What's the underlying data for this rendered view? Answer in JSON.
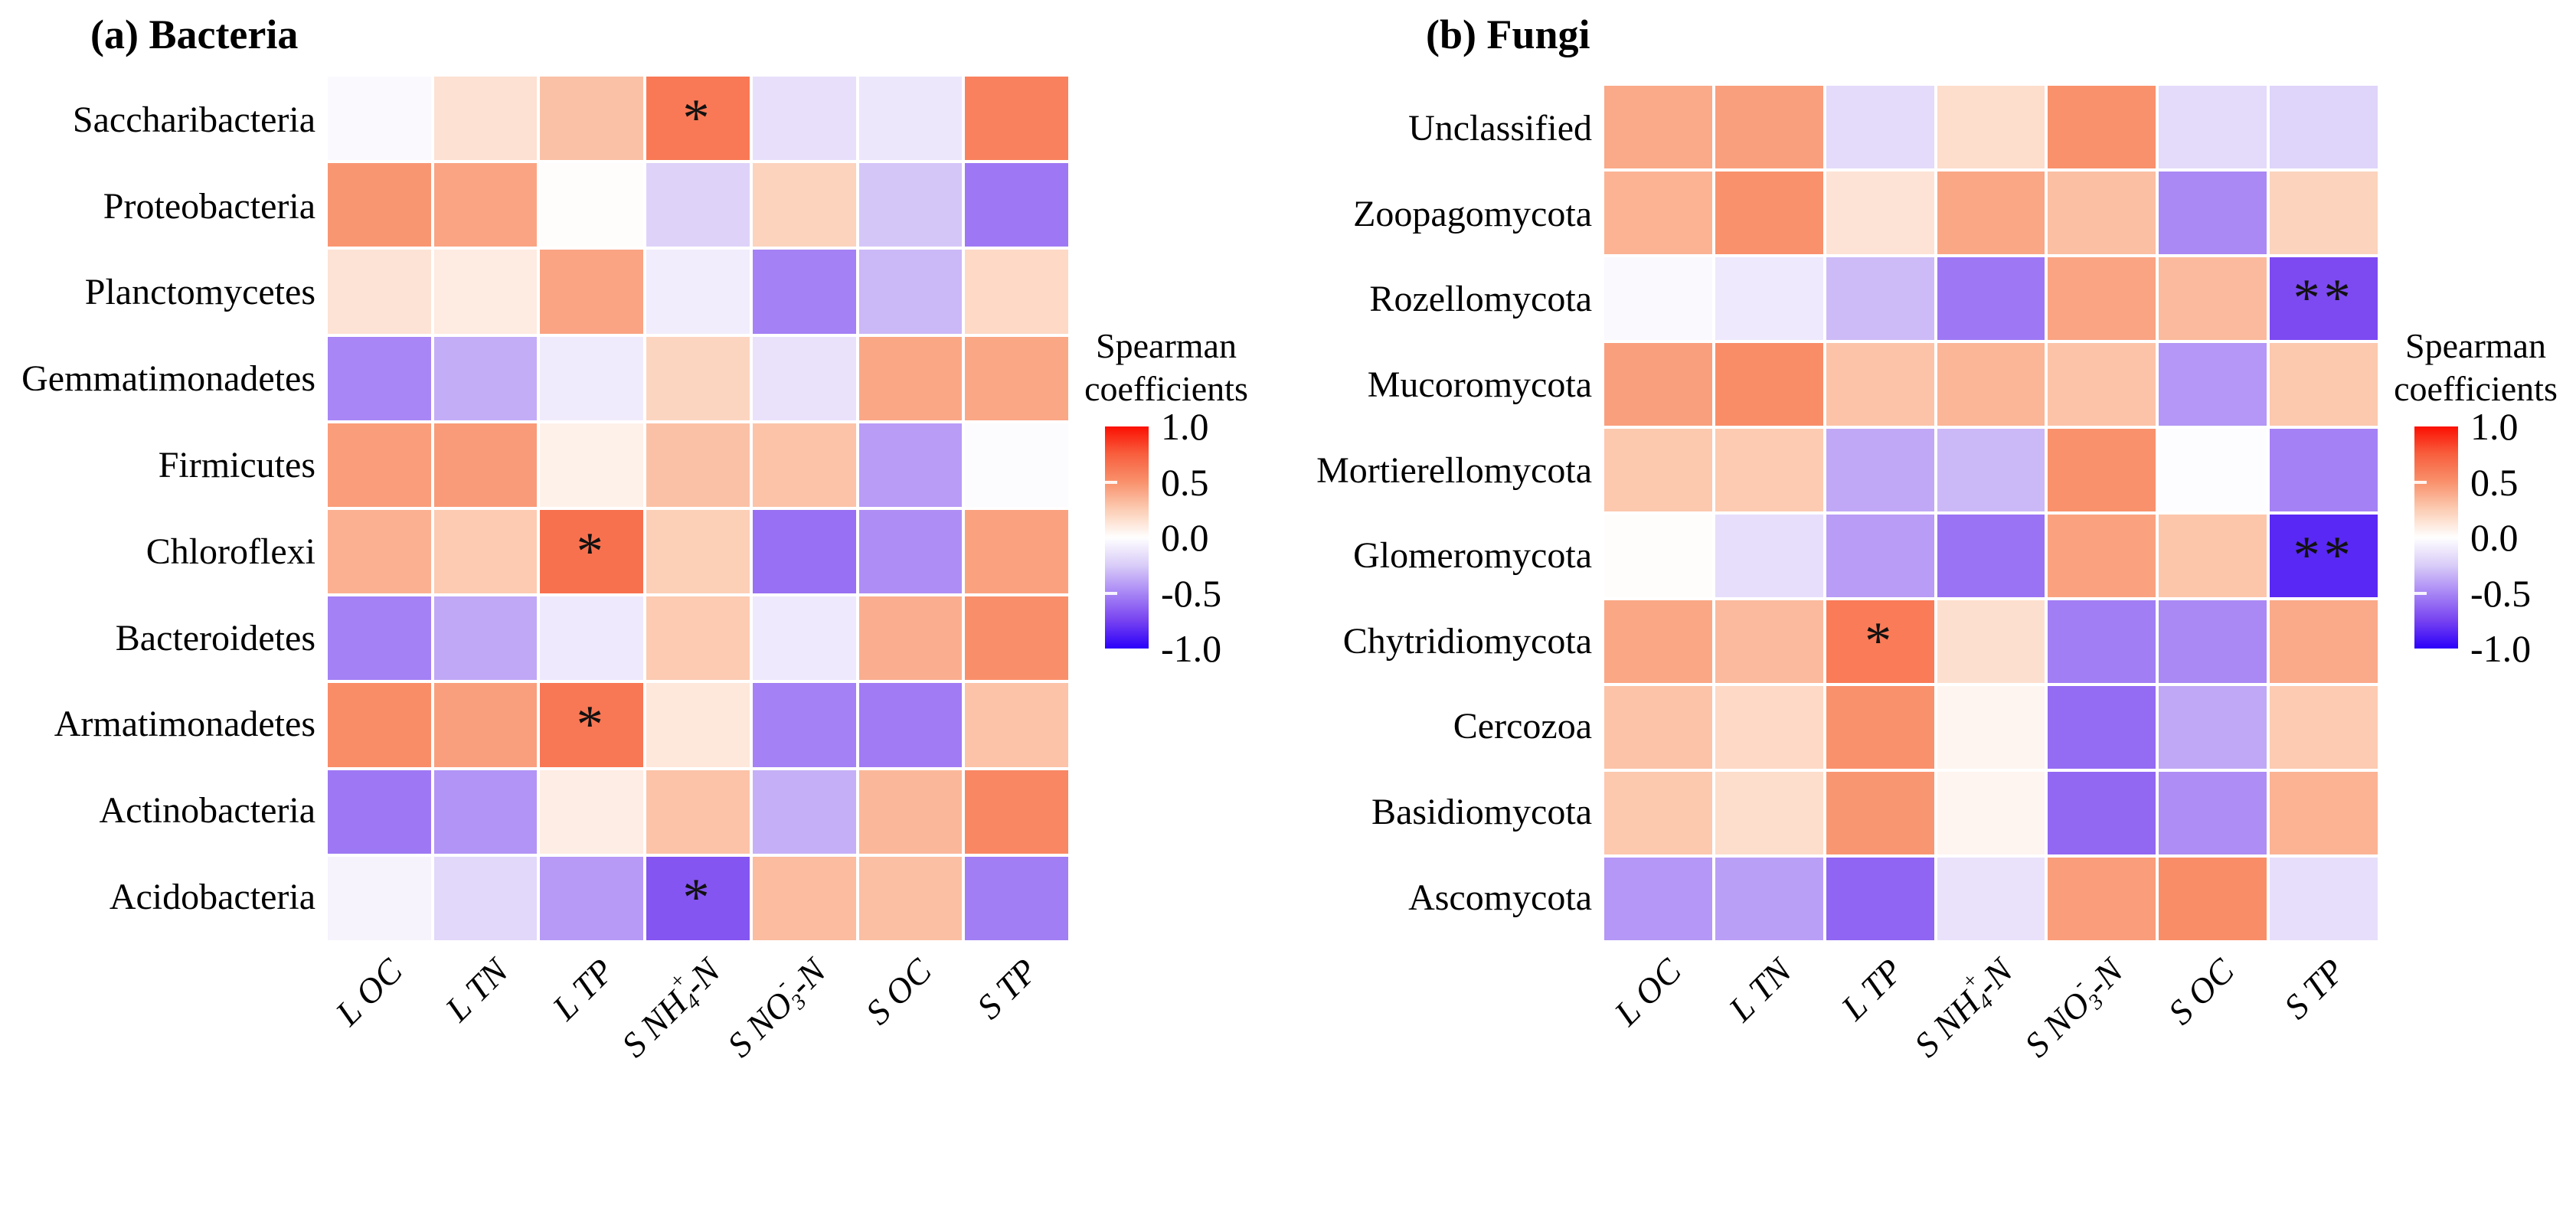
{
  "colors": {
    "background": "#ffffff",
    "text": "#000000"
  },
  "chart_data": [
    {
      "type": "heatmap",
      "panel_id": "a",
      "title": "(a) Bacteria",
      "columns": [
        "L OC",
        "L TN",
        "L TP",
        "S NH4+-N",
        "S NO3--N",
        "S OC",
        "S TP"
      ],
      "columns_rich": [
        [
          {
            "t": "L OC"
          }
        ],
        [
          {
            "t": "L TN"
          }
        ],
        [
          {
            "t": "L TP"
          }
        ],
        [
          {
            "t": "S NH"
          },
          {
            "t": "4",
            "m": "sub"
          },
          {
            "t": "+",
            "m": "sup"
          },
          {
            "t": "-N"
          }
        ],
        [
          {
            "t": "S NO"
          },
          {
            "t": "3",
            "m": "sub"
          },
          {
            "t": "-",
            "m": "sup"
          },
          {
            "t": "-N"
          }
        ],
        [
          {
            "t": "S OC"
          }
        ],
        [
          {
            "t": "S TP"
          }
        ]
      ],
      "rows": [
        "Saccharibacteria",
        "Proteobacteria",
        "Planctomycetes",
        "Gemmatimonadetes",
        "Firmicutes",
        "Chloroflexi",
        "Bacteroidetes",
        "Armatimonadetes",
        "Actinobacteria",
        "Acidobacteria"
      ],
      "values": [
        [
          -0.03,
          0.15,
          0.3,
          0.62,
          -0.15,
          -0.12,
          0.58
        ],
        [
          0.48,
          0.42,
          0.01,
          -0.22,
          0.22,
          -0.27,
          -0.55
        ],
        [
          0.14,
          0.1,
          0.42,
          -0.09,
          -0.52,
          -0.32,
          0.19
        ],
        [
          -0.5,
          -0.36,
          -0.1,
          0.21,
          -0.14,
          0.41,
          0.41
        ],
        [
          0.45,
          0.46,
          0.07,
          0.3,
          0.29,
          -0.42,
          -0.02
        ],
        [
          0.37,
          0.26,
          0.66,
          0.24,
          -0.58,
          -0.47,
          0.43
        ],
        [
          -0.52,
          -0.38,
          -0.11,
          0.26,
          -0.11,
          0.38,
          0.51
        ],
        [
          0.52,
          0.44,
          0.63,
          0.12,
          -0.52,
          -0.54,
          0.29
        ],
        [
          -0.55,
          -0.45,
          0.09,
          0.29,
          -0.35,
          0.34,
          0.55
        ],
        [
          -0.06,
          -0.19,
          -0.43,
          -0.68,
          0.32,
          0.31,
          -0.53
        ]
      ],
      "significance": [
        [
          "",
          "",
          "",
          "*",
          "",
          "",
          ""
        ],
        [
          "",
          "",
          "",
          "",
          "",
          "",
          ""
        ],
        [
          "",
          "",
          "",
          "",
          "",
          "",
          ""
        ],
        [
          "",
          "",
          "",
          "",
          "",
          "",
          ""
        ],
        [
          "",
          "",
          "",
          "",
          "",
          "",
          ""
        ],
        [
          "",
          "",
          "*",
          "",
          "",
          "",
          ""
        ],
        [
          "",
          "",
          "",
          "",
          "",
          "",
          ""
        ],
        [
          "",
          "",
          "*",
          "",
          "",
          "",
          ""
        ],
        [
          "",
          "",
          "",
          "",
          "",
          "",
          ""
        ],
        [
          "",
          "",
          "",
          "*",
          "",
          "",
          ""
        ]
      ],
      "legend": {
        "title_lines": [
          "Spearman",
          "coefficients"
        ],
        "ticks": [
          "1.0",
          "0.5",
          "0.0",
          "-0.5",
          "-1.0"
        ]
      },
      "colorscale": {
        "domain": [
          -1,
          1
        ],
        "anchors": [
          [
            1.0,
            "#FB1003"
          ],
          [
            0.75,
            "#F85F3E"
          ],
          [
            0.5,
            "#F9916C"
          ],
          [
            0.25,
            "#FCCDB4"
          ],
          [
            0.0,
            "#FFFFFF"
          ],
          [
            -0.25,
            "#D9CCF8"
          ],
          [
            -0.5,
            "#A886F5"
          ],
          [
            -0.75,
            "#7742F0"
          ],
          [
            -1.0,
            "#2B00FA"
          ]
        ]
      }
    },
    {
      "type": "heatmap",
      "panel_id": "b",
      "title": "(b) Fungi",
      "columns": [
        "L OC",
        "L TN",
        "L TP",
        "S NH4+-N",
        "S NO3--N",
        "S OC",
        "S TP"
      ],
      "columns_rich": [
        [
          {
            "t": "L OC"
          }
        ],
        [
          {
            "t": "L TN"
          }
        ],
        [
          {
            "t": "L TP"
          }
        ],
        [
          {
            "t": "S NH"
          },
          {
            "t": "4",
            "m": "sub"
          },
          {
            "t": "+",
            "m": "sup"
          },
          {
            "t": "-N"
          }
        ],
        [
          {
            "t": "S NO"
          },
          {
            "t": "3",
            "m": "sub"
          },
          {
            "t": "-",
            "m": "sup"
          },
          {
            "t": "-N"
          }
        ],
        [
          {
            "t": "S OC"
          }
        ],
        [
          {
            "t": "S TP"
          }
        ]
      ],
      "rows": [
        "Unclassified",
        "Zoopagomycota",
        "Rozellomycota",
        "Mucoromycota",
        "Mortierellomycota",
        "Glomeromycota",
        "Chytridiomycota",
        "Cercozoa",
        "Basidiomycota",
        "Ascomycota"
      ],
      "values": [
        [
          0.4,
          0.44,
          -0.18,
          0.17,
          0.5,
          -0.18,
          -0.21
        ],
        [
          0.36,
          0.5,
          0.14,
          0.41,
          0.31,
          -0.49,
          0.22
        ],
        [
          -0.03,
          -0.11,
          -0.31,
          -0.55,
          0.42,
          0.33,
          -0.72
        ],
        [
          0.44,
          0.52,
          0.29,
          0.35,
          0.29,
          -0.44,
          0.27
        ],
        [
          0.27,
          0.26,
          -0.38,
          -0.32,
          0.5,
          -0.01,
          -0.52
        ],
        [
          0.01,
          -0.16,
          -0.42,
          -0.57,
          0.43,
          0.28,
          -0.85
        ],
        [
          0.41,
          0.33,
          0.61,
          0.16,
          -0.53,
          -0.49,
          0.4
        ],
        [
          0.29,
          0.19,
          0.5,
          0.05,
          -0.6,
          -0.38,
          0.26
        ],
        [
          0.27,
          0.17,
          0.48,
          0.05,
          -0.61,
          -0.47,
          0.36
        ],
        [
          -0.44,
          -0.41,
          -0.62,
          -0.14,
          0.45,
          0.52,
          -0.16
        ]
      ],
      "significance": [
        [
          "",
          "",
          "",
          "",
          "",
          "",
          ""
        ],
        [
          "",
          "",
          "",
          "",
          "",
          "",
          ""
        ],
        [
          "",
          "",
          "",
          "",
          "",
          "",
          "**"
        ],
        [
          "",
          "",
          "",
          "",
          "",
          "",
          ""
        ],
        [
          "",
          "",
          "",
          "",
          "",
          "",
          ""
        ],
        [
          "",
          "",
          "",
          "",
          "",
          "",
          "**"
        ],
        [
          "",
          "",
          "*",
          "",
          "",
          "",
          ""
        ],
        [
          "",
          "",
          "",
          "",
          "",
          "",
          ""
        ],
        [
          "",
          "",
          "",
          "",
          "",
          "",
          ""
        ],
        [
          "",
          "",
          "",
          "",
          "",
          "",
          ""
        ]
      ],
      "legend": {
        "title_lines": [
          "Spearman",
          "coefficients"
        ],
        "ticks": [
          "1.0",
          "0.5",
          "0.0",
          "-0.5",
          "-1.0"
        ]
      },
      "colorscale": {
        "domain": [
          -1,
          1
        ],
        "anchors": [
          [
            1.0,
            "#FB1003"
          ],
          [
            0.75,
            "#F85F3E"
          ],
          [
            0.5,
            "#F9916C"
          ],
          [
            0.25,
            "#FCCDB4"
          ],
          [
            0.0,
            "#FFFFFF"
          ],
          [
            -0.25,
            "#D9CCF8"
          ],
          [
            -0.5,
            "#A886F5"
          ],
          [
            -0.75,
            "#7742F0"
          ],
          [
            -1.0,
            "#2B00FA"
          ]
        ]
      }
    }
  ]
}
